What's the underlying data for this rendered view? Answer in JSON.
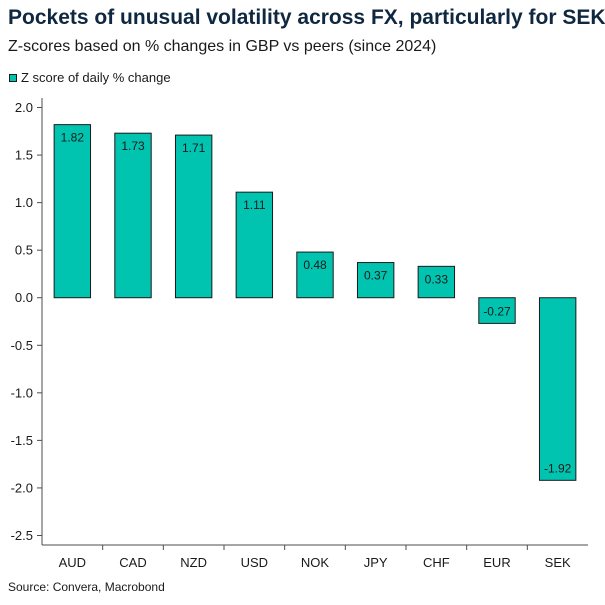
{
  "title": "Pockets of unusual volatility across FX, particularly for SEK",
  "subtitle": "Z-scores based on % changes in GBP vs peers (since 2024)",
  "source": "Source: Convera, Macrobond",
  "colors": {
    "bar": "#00c4b0",
    "bar_stroke": "#1a1a1a",
    "axis": "#4d4d4d",
    "text": "#1a1a1a",
    "title": "#0f2840"
  },
  "chart_data": {
    "type": "bar",
    "title": "Pockets of unusual volatility across FX, particularly for SEK",
    "subtitle": "Z-scores based on % changes in GBP vs peers (since 2024)",
    "categories": [
      "AUD",
      "CAD",
      "NZD",
      "USD",
      "NOK",
      "JPY",
      "CHF",
      "EUR",
      "SEK"
    ],
    "series": [
      {
        "name": "Z score of daily % change",
        "values": [
          1.82,
          1.73,
          1.71,
          1.11,
          0.48,
          0.37,
          0.33,
          -0.27,
          -1.92
        ]
      }
    ],
    "data_labels": [
      "1.82",
      "1.73",
      "1.71",
      "1.11",
      "0.48",
      "0.37",
      "0.33",
      "-0.27",
      "-1.92"
    ],
    "yticks": [
      "2.0",
      "1.5",
      "1.0",
      "0.5",
      "0.0",
      "-0.5",
      "-1.0",
      "-1.5",
      "-2.0",
      "-2.5"
    ],
    "ylim": [
      -2.6,
      2.1
    ],
    "xlabel": "",
    "ylabel": "",
    "grid": false,
    "legend": "top-left"
  }
}
